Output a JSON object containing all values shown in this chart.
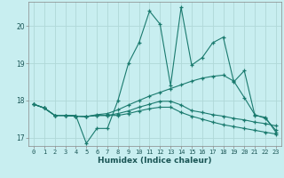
{
  "xlabel": "Humidex (Indice chaleur)",
  "bg_color": "#c8eef0",
  "line_color": "#1a7a6e",
  "grid_color": "#b0d8d8",
  "xlim": [
    -0.5,
    23.5
  ],
  "ylim": [
    16.78,
    20.65
  ],
  "yticks": [
    17,
    18,
    19,
    20
  ],
  "xticks": [
    0,
    1,
    2,
    3,
    4,
    5,
    6,
    7,
    8,
    9,
    10,
    11,
    12,
    13,
    14,
    15,
    16,
    17,
    18,
    19,
    20,
    21,
    22,
    23
  ],
  "series": [
    [
      17.9,
      17.8,
      17.6,
      17.6,
      17.6,
      16.85,
      17.25,
      17.25,
      18.0,
      19.0,
      19.55,
      20.4,
      20.05,
      18.4,
      20.5,
      18.95,
      19.15,
      19.55,
      19.7,
      18.5,
      18.8,
      17.6,
      17.55,
      17.15
    ],
    [
      17.9,
      17.8,
      17.6,
      17.6,
      17.58,
      17.57,
      17.62,
      17.65,
      17.75,
      17.88,
      18.0,
      18.12,
      18.22,
      18.32,
      18.42,
      18.52,
      18.6,
      18.65,
      18.68,
      18.52,
      18.08,
      17.62,
      17.52,
      17.2
    ],
    [
      17.9,
      17.8,
      17.6,
      17.6,
      17.58,
      17.57,
      17.6,
      17.6,
      17.6,
      17.65,
      17.72,
      17.78,
      17.82,
      17.82,
      17.68,
      17.58,
      17.5,
      17.42,
      17.35,
      17.3,
      17.25,
      17.2,
      17.15,
      17.1
    ],
    [
      17.9,
      17.8,
      17.6,
      17.6,
      17.58,
      17.57,
      17.6,
      17.6,
      17.65,
      17.72,
      17.82,
      17.9,
      17.98,
      17.98,
      17.88,
      17.73,
      17.68,
      17.62,
      17.58,
      17.52,
      17.48,
      17.42,
      17.38,
      17.32
    ]
  ]
}
